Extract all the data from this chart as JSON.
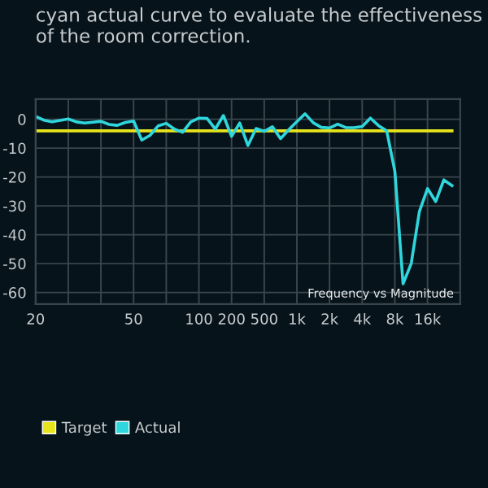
{
  "chart_data": {
    "type": "line",
    "subtitle": "cyan actual curve to evaluate the effectiveness of the room correction.",
    "annotations": [
      "Frequency vs Magnitude"
    ],
    "categories": [
      "20",
      null,
      null,
      null,
      null,
      null,
      null,
      null,
      null,
      null,
      null,
      null,
      "50",
      null,
      null,
      null,
      null,
      null,
      null,
      null,
      "100",
      null,
      null,
      null,
      "200",
      null,
      null,
      null,
      "500",
      null,
      null,
      null,
      "1k",
      null,
      null,
      null,
      "2k",
      null,
      null,
      null,
      "4k",
      null,
      null,
      null,
      "8k",
      null,
      null,
      null,
      "16k",
      null,
      null,
      null
    ],
    "ylim": [
      -64,
      7
    ],
    "yticks": [
      -60,
      -50,
      -40,
      -30,
      -20,
      -10,
      0
    ],
    "grid": true,
    "legend": "bottom left",
    "series": [
      {
        "name": "Target",
        "color": "#e8e41c",
        "values": [
          -4,
          -4,
          -4,
          -4,
          -4,
          -4,
          -4,
          -4,
          -4,
          -4,
          -4,
          -4,
          -4,
          -4,
          -4,
          -4,
          -4,
          -4,
          -4,
          -4,
          -4,
          -4,
          -4,
          -4,
          -4,
          -4,
          -4,
          -4,
          -4,
          -4,
          -4,
          -4,
          -4,
          -4,
          -4,
          -4,
          -4,
          -4,
          -4,
          -4,
          -4,
          -4,
          -4,
          -4,
          -4,
          -4,
          -4,
          -4,
          -4,
          -4,
          -4,
          -4
        ]
      },
      {
        "name": "Actual",
        "color": "#2fd6dc",
        "values": [
          1,
          -0.3,
          -0.9,
          -0.4,
          0.1,
          -0.9,
          -1.3,
          -1,
          -0.7,
          -1.8,
          -2.1,
          -1.1,
          -0.6,
          -7.2,
          -5.6,
          -2.3,
          -1.4,
          -3.4,
          -4.5,
          -0.9,
          0.4,
          0.3,
          -3.4,
          1.3,
          -5.9,
          -1.3,
          -9.1,
          -3.2,
          -4.2,
          -2.6,
          -6.7,
          -3.6,
          -0.8,
          1.9,
          -1.2,
          -2.8,
          -3,
          -1.7,
          -2.9,
          -2.9,
          -2.5,
          0.4,
          -2.2,
          -4,
          -18,
          -57,
          -50,
          -32,
          -24,
          -28.5,
          -21,
          -23
        ]
      }
    ]
  }
}
